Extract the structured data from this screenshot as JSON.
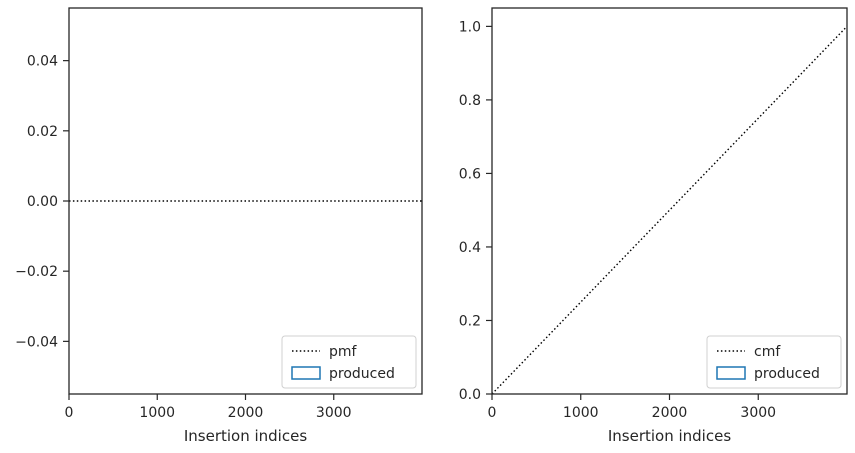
{
  "chart_data": [
    {
      "type": "line",
      "xlabel": "Insertion indices",
      "ylabel": "",
      "xlim": [
        0,
        4000
      ],
      "ylim": [
        -0.055,
        0.055
      ],
      "xticks": [
        0,
        1000,
        2000,
        3000
      ],
      "xtick_labels": [
        "0",
        "1000",
        "2000",
        "3000"
      ],
      "yticks": [
        -0.04,
        -0.02,
        0.0,
        0.02,
        0.04
      ],
      "ytick_labels": [
        "−0.04",
        "−0.02",
        "0.00",
        "0.02",
        "0.04"
      ],
      "grid": false,
      "legend_position": "lower-right",
      "legend": [
        {
          "label": "pmf",
          "style": "dotted-line",
          "color": "#000000"
        },
        {
          "label": "produced",
          "style": "hollow-box",
          "color": "#1f77b4"
        }
      ],
      "series": [
        {
          "name": "pmf",
          "style": "dotted",
          "color": "#000000",
          "x": [
            0,
            4000
          ],
          "y": [
            0,
            0
          ]
        }
      ]
    },
    {
      "type": "line",
      "xlabel": "Insertion indices",
      "ylabel": "",
      "xlim": [
        0,
        4000
      ],
      "ylim": [
        0,
        1.05
      ],
      "xticks": [
        0,
        1000,
        2000,
        3000
      ],
      "xtick_labels": [
        "0",
        "1000",
        "2000",
        "3000"
      ],
      "yticks": [
        0,
        0.2,
        0.4,
        0.6,
        0.8,
        1.0
      ],
      "ytick_labels": [
        "0.0",
        "0.2",
        "0.4",
        "0.6",
        "0.8",
        "1.0"
      ],
      "grid": false,
      "legend_position": "lower-right",
      "legend": [
        {
          "label": "cmf",
          "style": "dotted-line",
          "color": "#000000"
        },
        {
          "label": "produced",
          "style": "hollow-box",
          "color": "#1f77b4"
        }
      ],
      "series": [
        {
          "name": "cmf",
          "style": "dotted",
          "color": "#000000",
          "x": [
            0,
            4000
          ],
          "y": [
            0,
            1.0
          ]
        }
      ]
    }
  ]
}
